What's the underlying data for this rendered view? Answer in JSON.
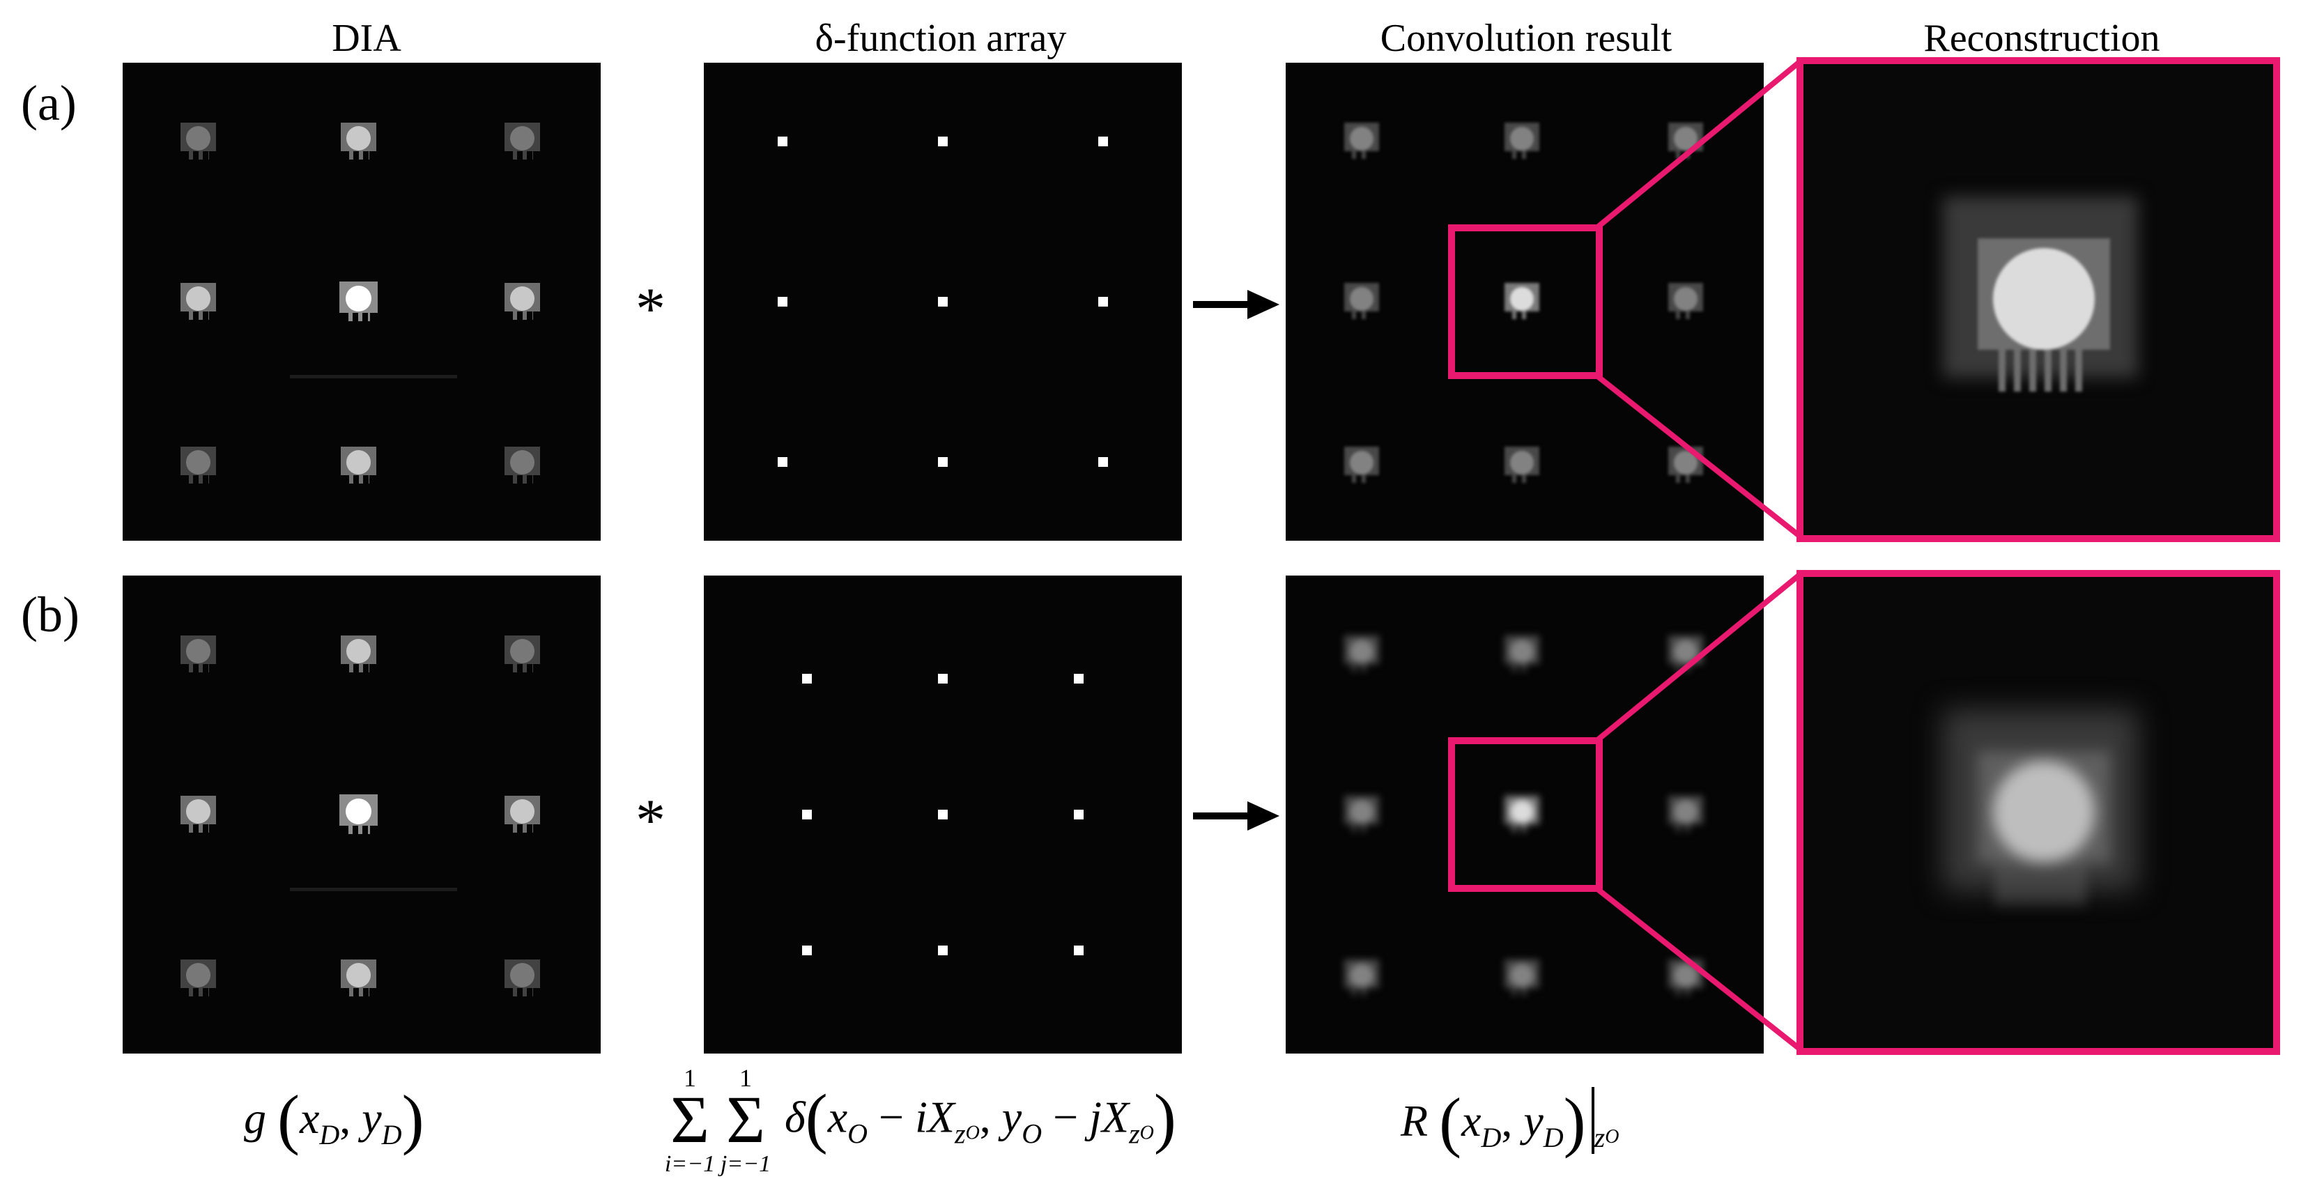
{
  "headers": {
    "col1": "DIA",
    "col2": "δ-function array",
    "col3": "Convolution result",
    "col4": "Reconstruction"
  },
  "rows": [
    {
      "label": "(a)"
    },
    {
      "label": "(b)"
    }
  ],
  "operators": {
    "convolve": "*"
  },
  "formulas": {
    "dia": {
      "fn": "g",
      "x": "x",
      "xsub": "D",
      "y": "y",
      "ysub": "D"
    },
    "delta": {
      "sum_top": "1",
      "sum_i": "i=−1",
      "sum_j": "j=−1",
      "delta": "δ",
      "x": "x",
      "xsub": "O",
      "ix": "iX",
      "zsub": "z",
      "zsubsub": "O",
      "y": "y",
      "ysub": "O",
      "jx": "jX"
    },
    "result": {
      "fn": "R",
      "x": "x",
      "xsub": "D",
      "y": "y",
      "ysub": "D",
      "eval": "z",
      "evalsub": "O"
    }
  },
  "colors": {
    "zoom_box": "#e8196e",
    "panel_bg": "#050505"
  }
}
